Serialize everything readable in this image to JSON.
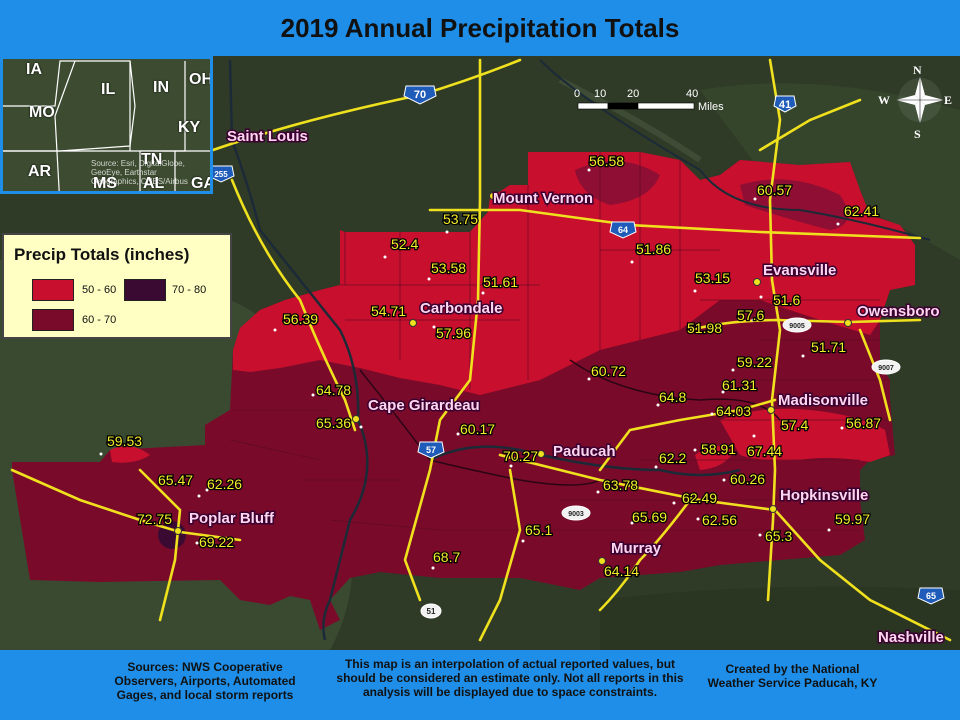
{
  "title": "2019 Annual Precipitation Totals",
  "legend": {
    "title": "Precip Totals (inches)",
    "items": [
      {
        "label": "50 - 60",
        "color": "#c8102e"
      },
      {
        "label": "70 - 80",
        "color": "#3b0a32"
      },
      {
        "label": "60 - 70",
        "color": "#7a0a2a"
      }
    ]
  },
  "inset_map": {
    "states": [
      "IA",
      "IL",
      "IN",
      "OH",
      "MO",
      "KY",
      "AR",
      "TN",
      "MS",
      "AL",
      "GA"
    ],
    "source": "Source: Esri, DigitalGlobe, GeoEye, Earthstar Geographics, CNES/Airbus"
  },
  "scale_bar": {
    "ticks": [
      "0",
      "10",
      "20",
      "40"
    ],
    "unit": "Miles"
  },
  "compass": {
    "n": "N",
    "s": "S",
    "e": "E",
    "w": "W"
  },
  "highway_shields": [
    "70",
    "41",
    "255",
    "64",
    "57",
    "9005",
    "9007",
    "9003",
    "51",
    "65"
  ],
  "cities": [
    "Saint Louis",
    "Mount Vernon",
    "Evansville",
    "Owensboro",
    "Carbondale",
    "Cape Girardeau",
    "Madisonville",
    "Paducah",
    "Poplar Bluff",
    "Hopkinsville",
    "Murray",
    "Nashville"
  ],
  "precip_values": [
    "56.58",
    "60.57",
    "62.41",
    "53.75",
    "52.4",
    "51.86",
    "53.58",
    "53.15",
    "51.61",
    "51.6",
    "54.71",
    "57.6",
    "51.98",
    "56.39",
    "57.96",
    "51.71",
    "59.22",
    "60.72",
    "64.78",
    "61.31",
    "64.8",
    "64.03",
    "65.36",
    "57.4",
    "56.87",
    "60.17",
    "59.53",
    "70.27",
    "58.91",
    "67.44",
    "62.2",
    "60.26",
    "65.47",
    "62.26",
    "63.78",
    "62.49",
    "72.75",
    "65.69",
    "62.56",
    "59.97",
    "69.22",
    "65.1",
    "65.3",
    "68.7",
    "64.14"
  ],
  "footer": {
    "sources": "Sources: NWS Cooperative Observers, Airports, Automated Gages, and local storm reports",
    "disclaimer": "This map is an interpolation of actual reported values, but should be considered an estimate only. Not all reports in this analysis will be displayed due to space constraints.",
    "credit": "Created by the National Weather Service Paducah, KY"
  }
}
